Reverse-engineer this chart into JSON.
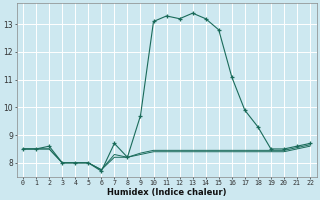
{
  "xlabel": "Humidex (Indice chaleur)",
  "bg_color": "#cde8f0",
  "grid_color": "#ffffff",
  "line_color": "#1a6b5a",
  "x_ticks": [
    0,
    1,
    2,
    3,
    4,
    5,
    6,
    7,
    8,
    9,
    10,
    11,
    12,
    13,
    14,
    15,
    16,
    17,
    18,
    19,
    20,
    21,
    22
  ],
  "x_tick_labels": [
    "0",
    "1",
    "2",
    "3",
    "4",
    "5",
    "6",
    "7",
    "8",
    "9",
    "10",
    "11",
    "12",
    "13",
    "14",
    "15",
    "16",
    "17",
    "18",
    "19",
    "20",
    "21",
    "22"
  ],
  "ylim": [
    7.5,
    13.75
  ],
  "xlim": [
    -0.5,
    22.5
  ],
  "y_ticks": [
    8,
    9,
    10,
    11,
    12,
    13
  ],
  "series_main": {
    "x": [
      0,
      1,
      2,
      3,
      4,
      5,
      6,
      7,
      8,
      9,
      10,
      11,
      12,
      13,
      14,
      15,
      16,
      17,
      18,
      19,
      20,
      21,
      22
    ],
    "y": [
      8.5,
      8.5,
      8.6,
      8.0,
      8.0,
      8.0,
      7.7,
      8.7,
      8.2,
      9.7,
      13.1,
      13.3,
      13.2,
      13.4,
      13.2,
      12.8,
      11.1,
      9.9,
      9.3,
      8.5,
      8.5,
      8.6,
      8.7
    ]
  },
  "series_flat1": {
    "x": [
      0,
      1,
      2,
      3,
      4,
      5,
      6,
      7,
      8,
      9,
      10,
      11,
      12,
      13,
      14,
      15,
      16,
      17,
      18,
      19,
      20,
      21,
      22
    ],
    "y": [
      8.5,
      8.5,
      8.5,
      8.0,
      8.0,
      8.0,
      7.75,
      8.2,
      8.2,
      8.3,
      8.4,
      8.4,
      8.4,
      8.4,
      8.4,
      8.4,
      8.4,
      8.4,
      8.4,
      8.4,
      8.4,
      8.5,
      8.6
    ]
  },
  "series_flat2": {
    "x": [
      0,
      1,
      2,
      3,
      4,
      5,
      6,
      7,
      8,
      9,
      10,
      11,
      12,
      13,
      14,
      15,
      16,
      17,
      18,
      19,
      20,
      21,
      22
    ],
    "y": [
      8.5,
      8.5,
      8.5,
      8.0,
      8.0,
      8.0,
      7.75,
      8.3,
      8.2,
      8.35,
      8.45,
      8.45,
      8.45,
      8.45,
      8.45,
      8.45,
      8.45,
      8.45,
      8.45,
      8.45,
      8.45,
      8.55,
      8.65
    ]
  }
}
